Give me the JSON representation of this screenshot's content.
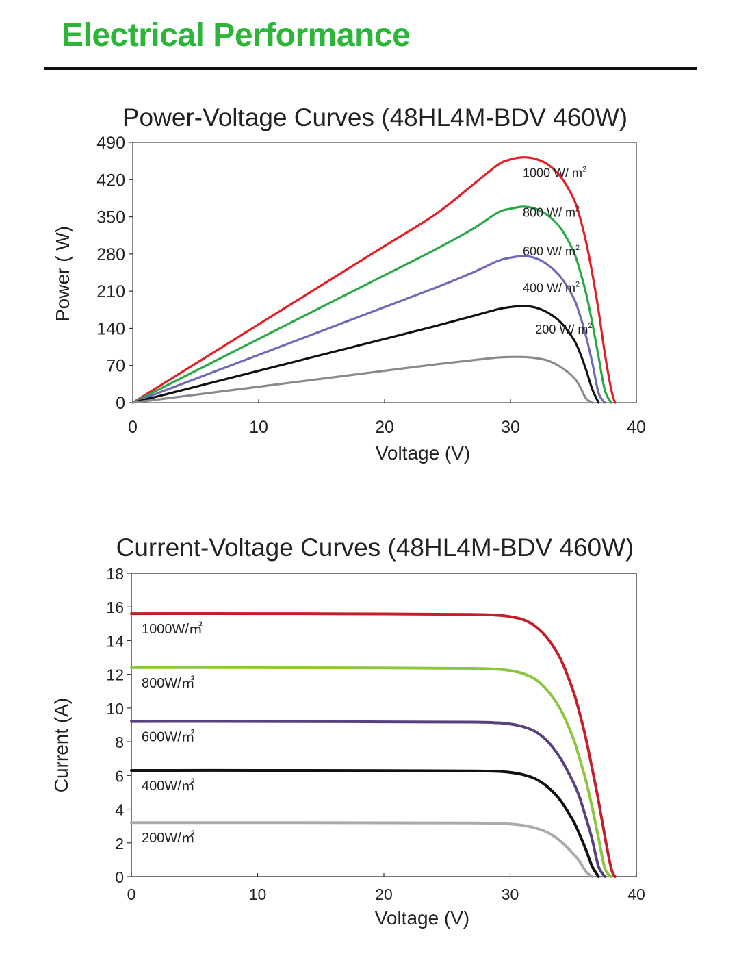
{
  "page": {
    "heading": "Electrical Performance",
    "rule_color": "#111111",
    "heading_color": "#2db53a"
  },
  "chart_data": [
    {
      "type": "line",
      "title": "Power-Voltage Curves (48HL4M-BDV 460W)",
      "xlabel": "Voltage (V)",
      "ylabel": "Power ( W)",
      "xlim": [
        0,
        40
      ],
      "ylim": [
        0,
        490
      ],
      "xticks": [
        0,
        10,
        20,
        30,
        40
      ],
      "yticks": [
        0,
        70,
        140,
        210,
        280,
        350,
        420,
        490
      ],
      "grid": false,
      "x": [
        0,
        4,
        8,
        12,
        16,
        20,
        24,
        27,
        29,
        30,
        31,
        32,
        33,
        34,
        35,
        35.5,
        36,
        36.5,
        37,
        37.5,
        38,
        38.3
      ],
      "series": [
        {
          "name": "1000 W/ m²",
          "color": "#e31e24",
          "values": [
            0,
            59,
            118,
            177,
            236,
            295,
            354,
            410,
            448,
            458,
            462,
            459,
            448,
            425,
            385,
            350,
            303,
            243,
            173,
            92,
            25,
            0
          ]
        },
        {
          "name": "800 W/ m²",
          "color": "#2aa84a",
          "values": [
            0,
            48,
            96,
            144,
            192,
            240,
            288,
            327,
            358,
            365,
            369,
            365,
            352,
            328,
            285,
            250,
            206,
            150,
            86,
            23,
            0,
            null
          ]
        },
        {
          "name": "600 W/ m²",
          "color": "#6e6bb5",
          "values": [
            0,
            36,
            72,
            108,
            144,
            180,
            216,
            245,
            267,
            273,
            276,
            272,
            259,
            236,
            198,
            166,
            125,
            75,
            18,
            0,
            null,
            null
          ]
        },
        {
          "name": "400 W/ m²",
          "color": "#111111",
          "values": [
            0,
            24,
            48,
            72,
            96,
            120,
            144,
            163,
            176,
            180,
            182,
            179,
            169,
            151,
            120,
            95,
            62,
            25,
            0,
            null,
            null,
            null
          ]
        },
        {
          "name": "200 W/ m²",
          "color": "#8a8a8a",
          "values": [
            0,
            12,
            24,
            36,
            48,
            60,
            72,
            80,
            85,
            86,
            86,
            84,
            79,
            67,
            48,
            31,
            8,
            0,
            null,
            null,
            null,
            null
          ]
        }
      ],
      "labels": [
        "1000 W/ m",
        "800 W/ m",
        "600 W/ m",
        "400 W/ m",
        "200 W/ m"
      ],
      "label_sup": "2"
    },
    {
      "type": "line",
      "title": "Current-Voltage Curves (48HL4M-BDV 460W)",
      "xlabel": "Voltage (V)",
      "ylabel": "Current (A)",
      "xlim": [
        0,
        40
      ],
      "ylim": [
        0,
        18
      ],
      "xticks": [
        0,
        10,
        20,
        30,
        40
      ],
      "yticks": [
        0,
        2,
        4,
        6,
        8,
        10,
        12,
        14,
        16,
        18
      ],
      "grid": false,
      "x": [
        0,
        10,
        20,
        27,
        29,
        30,
        31,
        32,
        33,
        34,
        35,
        35.5,
        36,
        36.5,
        37,
        37.5,
        38,
        38.3
      ],
      "series": [
        {
          "name": "1000W/㎡",
          "color": "#c41e2b",
          "values": [
            15.6,
            15.6,
            15.58,
            15.55,
            15.5,
            15.42,
            15.25,
            14.85,
            14.1,
            12.9,
            11.0,
            9.7,
            8.2,
            6.4,
            4.5,
            2.4,
            0.5,
            0
          ]
        },
        {
          "name": "800W/㎡",
          "color": "#8cc63e",
          "values": [
            12.4,
            12.4,
            12.38,
            12.35,
            12.3,
            12.22,
            12.05,
            11.7,
            11.0,
            9.9,
            8.2,
            7.0,
            5.7,
            4.1,
            2.3,
            0.5,
            0,
            null
          ]
        },
        {
          "name": "600W/㎡",
          "color": "#57417e",
          "values": [
            9.2,
            9.2,
            9.18,
            9.16,
            9.12,
            9.05,
            8.9,
            8.6,
            8.0,
            7.0,
            5.6,
            4.7,
            3.5,
            2.2,
            0.6,
            0,
            null,
            null
          ]
        },
        {
          "name": "400W/㎡",
          "color": "#111111",
          "values": [
            6.3,
            6.3,
            6.29,
            6.27,
            6.24,
            6.18,
            6.05,
            5.8,
            5.3,
            4.5,
            3.3,
            2.5,
            1.6,
            0.6,
            0,
            null,
            null,
            null
          ]
        },
        {
          "name": "200W/㎡",
          "color": "#aaaaaa",
          "values": [
            3.2,
            3.2,
            3.19,
            3.18,
            3.16,
            3.12,
            3.04,
            2.88,
            2.6,
            2.1,
            1.35,
            0.9,
            0.3,
            0,
            null,
            null,
            null,
            null
          ]
        }
      ]
    }
  ]
}
